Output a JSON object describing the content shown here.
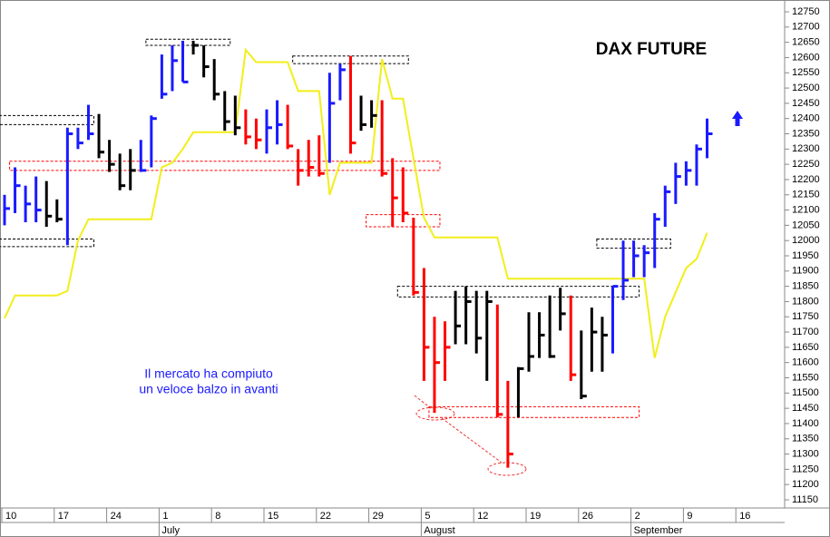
{
  "chart_data": {
    "type": "ohlc",
    "title": "DAX FUTURE",
    "annotation": [
      "Il mercato ha compiuto",
      "un veloce balzo in avanti"
    ],
    "categories": [
      "10",
      null,
      null,
      null,
      null,
      "17",
      null,
      null,
      null,
      null,
      "24",
      null,
      null,
      null,
      null,
      "1",
      null,
      null,
      null,
      null,
      "8",
      null,
      null,
      null,
      null,
      "15",
      null,
      null,
      null,
      null,
      "22",
      null,
      null,
      null,
      null,
      "29",
      null,
      null,
      null,
      null,
      "5",
      null,
      null,
      null,
      null,
      "12",
      null,
      null,
      null,
      null,
      "19",
      null,
      null,
      null,
      null,
      "26",
      null,
      null,
      null,
      null,
      "2",
      null,
      null,
      null,
      null,
      "9",
      null,
      null,
      null,
      null,
      "16",
      null,
      null,
      null,
      null
    ],
    "months": [
      "July",
      "August",
      "September"
    ],
    "high": [
      12150,
      12240,
      12180,
      12210,
      12195,
      12135,
      12370,
      12370,
      12445,
      12415,
      12330,
      12285,
      12300,
      12330,
      12410,
      12610,
      12640,
      12655,
      12655,
      12640,
      12595,
      12490,
      12475,
      12430,
      12400,
      12430,
      12460,
      12445,
      12300,
      12330,
      12345,
      12550,
      12580,
      12605,
      12475,
      12460,
      12460,
      12270,
      12240,
      12075,
      11910,
      11750,
      11735,
      11835,
      11850,
      11835,
      11835,
      11790,
      11540,
      11585,
      11765,
      11765,
      11820,
      11845,
      11820,
      11705,
      11780,
      11750,
      11850,
      12000,
      12000,
      11985,
      12090,
      12180,
      12255,
      12260,
      12315,
      12400,
      null,
      null,
      null,
      null,
      null,
      null,
      null
    ],
    "low": [
      12050,
      12090,
      12060,
      12060,
      12045,
      12060,
      11985,
      12300,
      12330,
      12270,
      12225,
      12165,
      12165,
      12225,
      12240,
      12465,
      12490,
      12520,
      12610,
      12535,
      12460,
      12360,
      12345,
      12315,
      12300,
      12285,
      12315,
      12300,
      12180,
      12210,
      12210,
      12255,
      12460,
      12285,
      12360,
      12370,
      12210,
      12045,
      12060,
      11820,
      11540,
      11435,
      11540,
      11660,
      11660,
      11630,
      11540,
      11420,
      11255,
      11420,
      11570,
      11615,
      11615,
      11705,
      11540,
      11480,
      11570,
      11570,
      11630,
      11805,
      11880,
      11880,
      11910,
      12045,
      12120,
      12180,
      12180,
      12270,
      null,
      null,
      null,
      null,
      null,
      null,
      null
    ],
    "close": [
      12105,
      12180,
      12120,
      12100,
      12080,
      12070,
      12350,
      12320,
      12350,
      12290,
      12250,
      12180,
      12230,
      12230,
      12400,
      12480,
      12590,
      12520,
      12640,
      12570,
      12480,
      12390,
      12370,
      12340,
      12330,
      12370,
      12380,
      12310,
      12230,
      12240,
      12220,
      12450,
      12560,
      12320,
      12380,
      12410,
      12220,
      12140,
      12090,
      11830,
      11650,
      11600,
      11650,
      11720,
      11800,
      11680,
      11800,
      11430,
      11300,
      11580,
      11620,
      11690,
      11620,
      11760,
      11560,
      11490,
      11700,
      11690,
      11850,
      11870,
      11950,
      11960,
      12070,
      12160,
      12210,
      12230,
      12300,
      12350,
      null,
      null,
      null,
      null,
      null,
      null,
      null
    ],
    "colors": [
      "#1a1aff",
      "#1a1aff",
      "#1a1aff",
      "#1a1aff",
      "#000000",
      "#000000",
      "#1a1aff",
      "#1a1aff",
      "#1a1aff",
      "#000000",
      "#000000",
      "#000000",
      "#000000",
      "#1a1aff",
      "#1a1aff",
      "#1a1aff",
      "#1a1aff",
      "#1a1aff",
      "#000000",
      "#000000",
      "#000000",
      "#000000",
      "#000000",
      "#ff0000",
      "#ff0000",
      "#1a1aff",
      "#1a1aff",
      "#ff0000",
      "#ff0000",
      "#ff0000",
      "#ff0000",
      "#1a1aff",
      "#1a1aff",
      "#ff0000",
      "#000000",
      "#000000",
      "#ff0000",
      "#ff0000",
      "#ff0000",
      "#ff0000",
      "#ff0000",
      "#ff0000",
      "#ff0000",
      "#000000",
      "#000000",
      "#000000",
      "#000000",
      "#ff0000",
      "#ff0000",
      "#000000",
      "#000000",
      "#000000",
      "#000000",
      "#000000",
      "#ff0000",
      "#000000",
      "#000000",
      "#000000",
      "#1a1aff",
      "#1a1aff",
      "#1a1aff",
      "#1a1aff",
      "#1a1aff",
      "#1a1aff",
      "#1a1aff",
      "#1a1aff",
      "#1a1aff",
      "#1a1aff",
      null,
      null,
      null,
      null,
      null,
      null,
      null
    ],
    "line": {
      "color": "#f2ee1a",
      "values": [
        11745,
        11820,
        11820,
        11820,
        11820,
        11820,
        11835,
        12000,
        12070,
        12070,
        12070,
        12070,
        12070,
        12070,
        12070,
        12240,
        12255,
        12300,
        12355,
        12355,
        12355,
        12355,
        12355,
        12625,
        12585,
        12585,
        12585,
        12585,
        12490,
        12490,
        12490,
        12150,
        12255,
        12255,
        12255,
        12255,
        12595,
        12465,
        12465,
        12270,
        12075,
        12010,
        12010,
        12010,
        12010,
        12010,
        12010,
        12010,
        11875,
        11875,
        11875,
        11875,
        11875,
        11875,
        11875,
        11875,
        11875,
        11875,
        11875,
        11875,
        11875,
        11875,
        11615,
        11750,
        11830,
        11910,
        11940,
        12025,
        null,
        null,
        null,
        null,
        null,
        null,
        null
      ]
    },
    "zones": [
      {
        "from": 0,
        "to": 8,
        "low": 12380,
        "high": 12410,
        "color": "#000000"
      },
      {
        "from": 0,
        "to": 8,
        "low": 11980,
        "high": 12005,
        "color": "#000000"
      },
      {
        "from": 1,
        "to": 41,
        "low": 12230,
        "high": 12260,
        "color": "#ff0000"
      },
      {
        "from": 14,
        "to": 21,
        "low": 12640,
        "high": 12660,
        "color": "#000000"
      },
      {
        "from": 28,
        "to": 38,
        "low": 12580,
        "high": 12605,
        "color": "#000000"
      },
      {
        "from": 35,
        "to": 41,
        "low": 12045,
        "high": 12085,
        "color": "#ff0000"
      },
      {
        "from": 38,
        "to": 60,
        "low": 11815,
        "high": 11850,
        "color": "#000000"
      },
      {
        "from": 41,
        "to": 60,
        "low": 11420,
        "high": 11455,
        "color": "#ff0000"
      },
      {
        "from": 57,
        "to": 63,
        "low": 11975,
        "high": 12005,
        "color": "#000000"
      }
    ],
    "ylim": [
      11123.2,
      12788.7
    ],
    "yticks": [
      12750,
      12700,
      12650,
      12600,
      12550,
      12500,
      12450,
      12400,
      12350,
      12300,
      12250,
      12200,
      12150,
      12100,
      12050,
      12000,
      11950,
      11900,
      11850,
      11800,
      11750,
      11700,
      11650,
      11600,
      11550,
      11500,
      11450,
      11400,
      11350,
      11300,
      11250,
      11200,
      11150
    ]
  }
}
